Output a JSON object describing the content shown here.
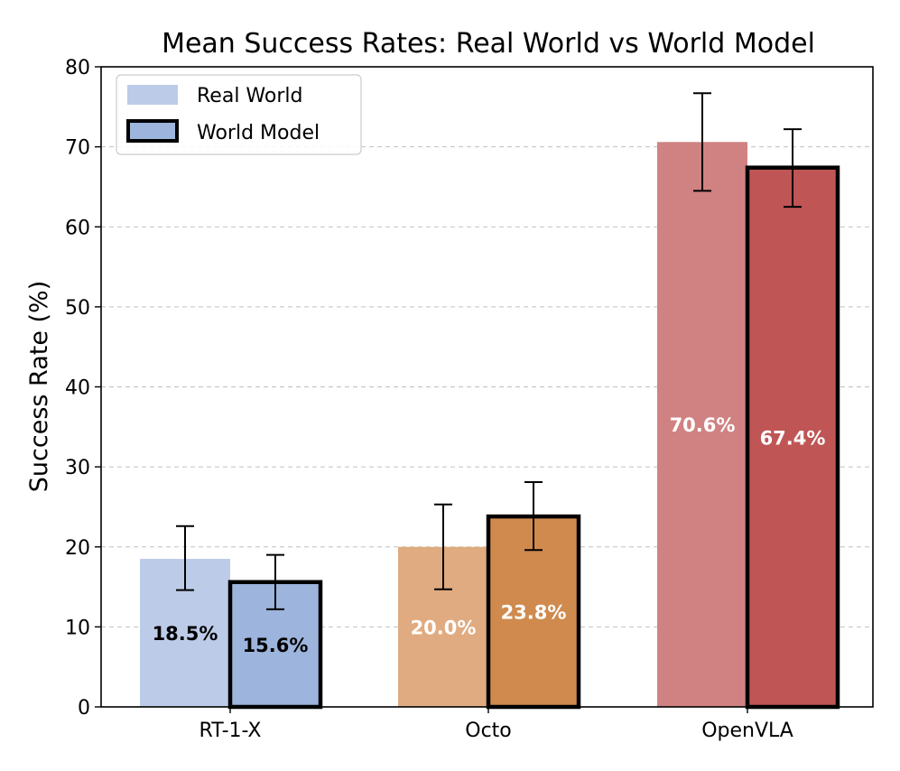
{
  "chart_data": {
    "type": "bar",
    "title": "Mean Success Rates: Real World vs World Model",
    "xlabel": "",
    "ylabel": "Success Rate (%)",
    "ylim": [
      0,
      80
    ],
    "yticks": [
      0,
      10,
      20,
      30,
      40,
      50,
      60,
      70,
      80
    ],
    "grid": "y-dashed",
    "legend_position": "top-left",
    "categories": [
      "RT-1-X",
      "Octo",
      "OpenVLA"
    ],
    "category_colors": {
      "RT-1-X": {
        "real": "#bccbe8",
        "model": "#9db4dc"
      },
      "Octo": {
        "real": "#e0ab80",
        "model": "#d08a4e"
      },
      "OpenVLA": {
        "real": "#d08282",
        "model": "#bf5555"
      }
    },
    "series": [
      {
        "name": "Real World",
        "values": [
          18.5,
          20.0,
          70.6
        ],
        "error_low": [
          14.6,
          14.7,
          64.5
        ],
        "error_high": [
          22.6,
          25.3,
          76.7
        ],
        "labels": [
          "18.5%",
          "20.0%",
          "70.6%"
        ],
        "label_colors": [
          "#000000",
          "#ffffff",
          "#ffffff"
        ],
        "outlined": false
      },
      {
        "name": "World Model",
        "values": [
          15.6,
          23.8,
          67.4
        ],
        "error_low": [
          12.2,
          19.6,
          62.5
        ],
        "error_high": [
          19.0,
          28.1,
          72.2
        ],
        "labels": [
          "15.6%",
          "23.8%",
          "67.4%"
        ],
        "label_colors": [
          "#000000",
          "#ffffff",
          "#ffffff"
        ],
        "outlined": true
      }
    ],
    "legend": {
      "entries": [
        "Real World",
        "World Model"
      ],
      "real_swatch_color": "#bccbe8",
      "model_swatch_color": "#9db4dc"
    }
  }
}
